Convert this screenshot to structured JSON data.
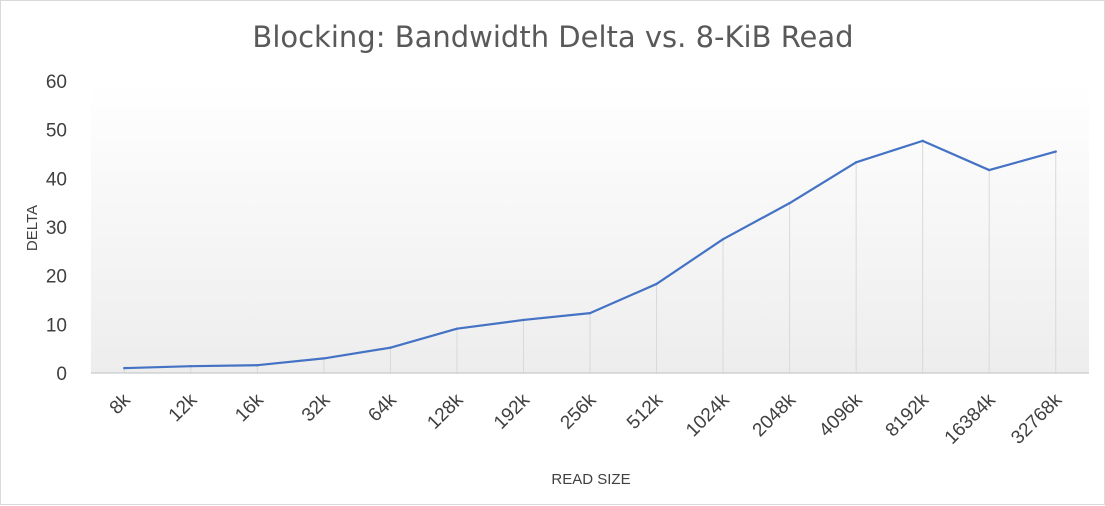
{
  "chart_data": {
    "type": "line",
    "title": "Blocking: Bandwidth Delta vs. 8-KiB Read",
    "xlabel": "READ SIZE",
    "ylabel": "DELTA",
    "categories": [
      "8k",
      "12k",
      "16k",
      "32k",
      "64k",
      "128k",
      "192k",
      "256k",
      "512k",
      "1024k",
      "2048k",
      "4096k",
      "8192k",
      "16384k",
      "32768k"
    ],
    "values": [
      1.0,
      1.4,
      1.6,
      3.0,
      5.2,
      9.1,
      10.9,
      12.3,
      18.3,
      27.5,
      34.9,
      43.3,
      47.7,
      41.7,
      45.5
    ],
    "ylim": [
      0,
      60
    ],
    "yticks": [
      0,
      10,
      20,
      30,
      40,
      50,
      60
    ],
    "grid": "vertical",
    "legend": "none",
    "colors": {
      "line": "#4472c4",
      "gridline": "#d9d9d9",
      "axis": "#bfbfbf"
    }
  }
}
